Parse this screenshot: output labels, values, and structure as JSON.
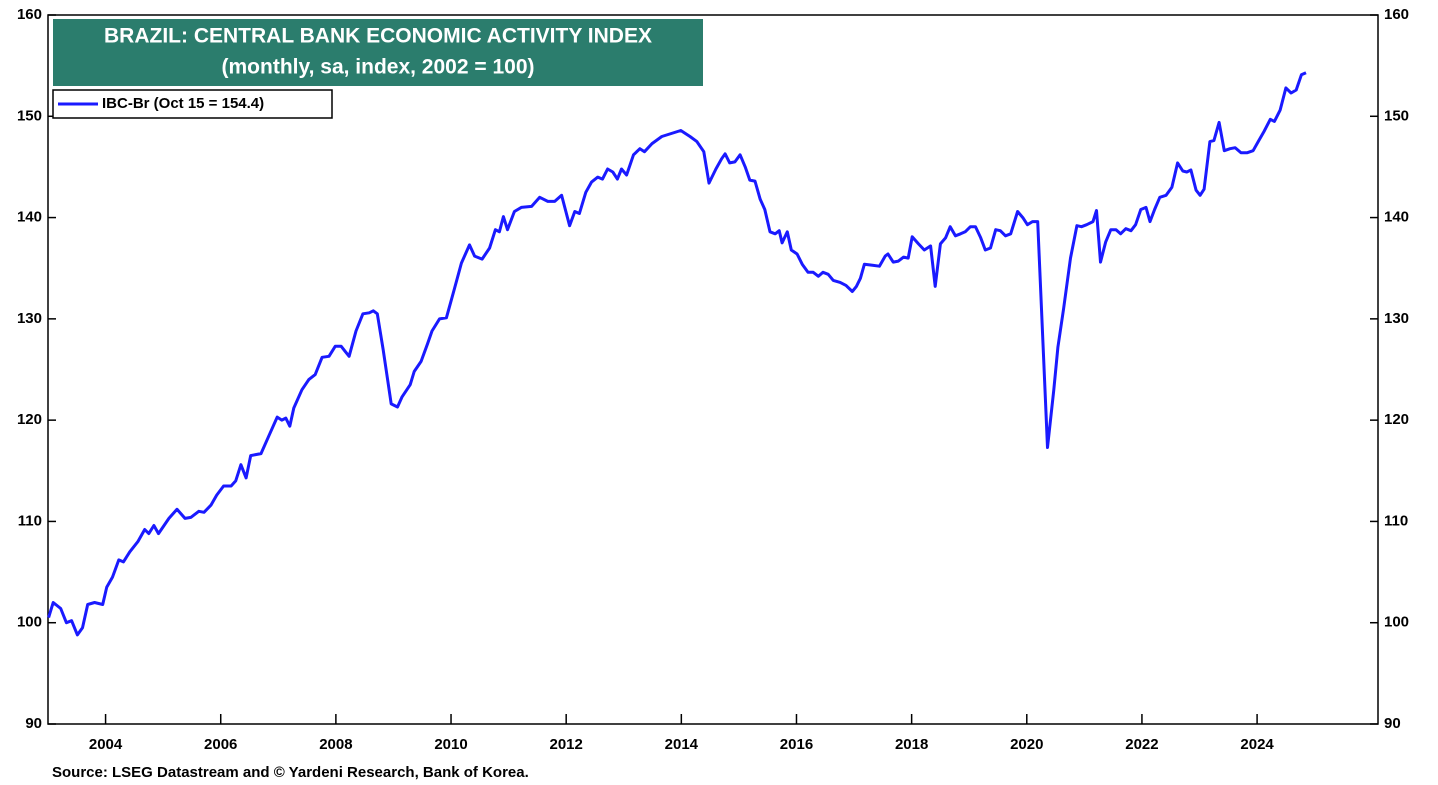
{
  "chart_data": {
    "type": "line",
    "title": "BRAZIL: CENTRAL BANK ECONOMIC ACTIVITY INDEX",
    "subtitle": "(monthly, sa, index, 2002 = 100)",
    "source": "Source: LSEG Datastream and © Yardeni Research, Bank of Korea.",
    "xlim": [
      2003,
      2026.1
    ],
    "xticks": [
      2004,
      2006,
      2008,
      2010,
      2012,
      2014,
      2016,
      2018,
      2020,
      2022,
      2024
    ],
    "ylim": [
      90,
      160
    ],
    "yticks": [
      90,
      100,
      110,
      120,
      130,
      140,
      150,
      160
    ],
    "x": [
      2003.01,
      2003.09,
      2003.22,
      2003.32,
      2003.41,
      2003.51,
      2003.6,
      2003.69,
      2003.81,
      2003.95,
      2004.02,
      2004.12,
      2004.23,
      2004.31,
      2004.42,
      2004.56,
      2004.68,
      2004.75,
      2004.84,
      2004.92,
      2005.1,
      2005.24,
      2005.38,
      2005.48,
      2005.62,
      2005.71,
      2005.83,
      2005.93,
      2006.05,
      2006.18,
      2006.26,
      2006.35,
      2006.44,
      2006.52,
      2006.7,
      2006.84,
      2006.98,
      2007.06,
      2007.13,
      2007.2,
      2007.27,
      2007.41,
      2007.53,
      2007.64,
      2007.76,
      2007.88,
      2007.99,
      2008.09,
      2008.16,
      2008.23,
      2008.35,
      2008.47,
      2008.58,
      2008.65,
      2008.72,
      2008.82,
      2008.96,
      2009.07,
      2009.15,
      2009.29,
      2009.36,
      2009.48,
      2009.59,
      2009.67,
      2009.8,
      2009.92,
      2010.06,
      2010.18,
      2010.32,
      2010.41,
      2010.54,
      2010.67,
      2010.77,
      2010.84,
      2010.91,
      2010.98,
      2011.1,
      2011.22,
      2011.4,
      2011.54,
      2011.68,
      2011.8,
      2011.92,
      2012.06,
      2012.15,
      2012.23,
      2012.34,
      2012.44,
      2012.55,
      2012.63,
      2012.72,
      2012.81,
      2012.89,
      2012.96,
      2013.05,
      2013.17,
      2013.28,
      2013.36,
      2013.49,
      2013.66,
      2013.99,
      2014.15,
      2014.27,
      2014.39,
      2014.48,
      2014.6,
      2014.7,
      2014.76,
      2014.84,
      2014.93,
      2015.02,
      2015.11,
      2015.19,
      2015.28,
      2015.37,
      2015.45,
      2015.54,
      2015.63,
      2015.7,
      2015.75,
      2015.84,
      2015.91,
      2016.01,
      2016.1,
      2016.2,
      2016.29,
      2016.38,
      2016.46,
      2016.55,
      2016.64,
      2016.76,
      2016.86,
      2016.97,
      2017.04,
      2017.11,
      2017.18,
      2017.32,
      2017.44,
      2017.54,
      2017.59,
      2017.68,
      2017.77,
      2017.86,
      2017.94,
      2018.01,
      2018.12,
      2018.22,
      2018.33,
      2018.41,
      2018.5,
      2018.59,
      2018.67,
      2018.76,
      2018.85,
      2018.93,
      2019.02,
      2019.11,
      2019.2,
      2019.28,
      2019.37,
      2019.46,
      2019.54,
      2019.63,
      2019.72,
      2019.84,
      2019.93,
      2020.01,
      2020.1,
      2020.19,
      2020.36,
      2020.47,
      2020.54,
      2020.64,
      2020.76,
      2020.87,
      2020.95,
      2021.04,
      2021.15,
      2021.21,
      2021.28,
      2021.37,
      2021.46,
      2021.55,
      2021.63,
      2021.72,
      2021.81,
      2021.89,
      2021.98,
      2022.07,
      2022.14,
      2022.22,
      2022.31,
      2022.42,
      2022.52,
      2022.62,
      2022.71,
      2022.78,
      2022.85,
      2022.94,
      2023.01,
      2023.08,
      2023.18,
      2023.25,
      2023.34,
      2023.43,
      2023.53,
      2023.62,
      2023.72,
      2023.83,
      2023.93,
      2024.02,
      2024.12,
      2024.23,
      2024.3,
      2024.4,
      2024.5,
      2024.59,
      2024.68,
      2024.77,
      2024.85
    ],
    "series": [
      {
        "name": "IBC-Br (Oct 15 = 154.4)",
        "color": "#1a1aff",
        "values": [
          100.5,
          102,
          101.4,
          100,
          100.2,
          98.8,
          99.5,
          101.8,
          102,
          101.8,
          103.5,
          104.5,
          106.2,
          106,
          107,
          108,
          109.2,
          108.8,
          109.6,
          108.8,
          110.3,
          111.2,
          110.3,
          110.4,
          111,
          110.9,
          111.6,
          112.6,
          113.5,
          113.5,
          114,
          115.6,
          114.3,
          116.5,
          116.7,
          118.5,
          120.3,
          120,
          120.2,
          119.4,
          121.2,
          123,
          124,
          124.5,
          126.2,
          126.3,
          127.3,
          127.3,
          126.8,
          126.3,
          128.8,
          130.5,
          130.6,
          130.8,
          130.5,
          127,
          121.6,
          121.3,
          122.3,
          123.5,
          124.8,
          125.8,
          127.5,
          128.8,
          130,
          130.1,
          133,
          135.5,
          137.3,
          136.2,
          135.9,
          137,
          138.8,
          138.6,
          140.1,
          138.8,
          140.6,
          141,
          141.1,
          142,
          141.6,
          141.6,
          142.2,
          139.2,
          140.6,
          140.4,
          142.5,
          143.5,
          144,
          143.8,
          144.8,
          144.5,
          143.8,
          144.8,
          144.2,
          146.2,
          146.8,
          146.5,
          147.3,
          148,
          148.6,
          148,
          147.5,
          146.5,
          143.4,
          144.8,
          145.8,
          146.3,
          145.4,
          145.5,
          146.2,
          145,
          143.7,
          143.6,
          141.8,
          140.8,
          138.6,
          138.4,
          138.7,
          137.5,
          138.6,
          136.8,
          136.4,
          135.4,
          134.6,
          134.6,
          134.2,
          134.6,
          134.4,
          133.8,
          133.6,
          133.3,
          132.7,
          133.2,
          134,
          135.4,
          135.3,
          135.2,
          136.2,
          136.4,
          135.6,
          135.7,
          136.1,
          136,
          138.1,
          137.4,
          136.8,
          137.2,
          133.2,
          137.4,
          138,
          139.1,
          138.2,
          138.4,
          138.6,
          139.1,
          139.1,
          138,
          136.8,
          137,
          138.8,
          138.7,
          138.2,
          138.4,
          140.6,
          140,
          139.3,
          139.6,
          139.6,
          117.3,
          123,
          127.2,
          131,
          136,
          139.2,
          139.1,
          139.3,
          139.6,
          140.7,
          135.6,
          137.6,
          138.8,
          138.8,
          138.4,
          138.9,
          138.7,
          139.3,
          140.8,
          141,
          139.6,
          140.8,
          142,
          142.2,
          143,
          145.4,
          144.6,
          144.5,
          144.7,
          142.7,
          142.2,
          142.8,
          147.5,
          147.6,
          149.4,
          146.6,
          146.8,
          146.9,
          146.4,
          146.4,
          146.6,
          147.5,
          148.5,
          149.7,
          149.5,
          150.6,
          152.8,
          152.3,
          152.6,
          154.1,
          154.3
        ]
      }
    ]
  }
}
